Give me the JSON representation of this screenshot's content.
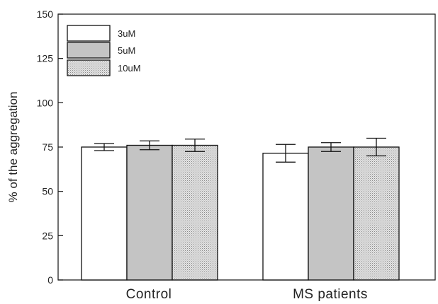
{
  "chart_data": {
    "type": "bar",
    "title": "",
    "xlabel": "",
    "ylabel": "% of the aggregation",
    "ylim": [
      0,
      150
    ],
    "yticks": [
      0,
      25,
      50,
      75,
      100,
      125,
      150
    ],
    "grid": false,
    "legend_position": "top-left",
    "categories": [
      "Control",
      "MS patients"
    ],
    "series": [
      {
        "name": "3uM",
        "values": [
          75,
          71.5
        ],
        "error": [
          2,
          5
        ],
        "fill": "white",
        "color": "#ffffff"
      },
      {
        "name": "5uM",
        "values": [
          76,
          75
        ],
        "error": [
          2.5,
          2.5
        ],
        "fill": "gray",
        "color": "#c4c4c4"
      },
      {
        "name": "10uM",
        "values": [
          76,
          75
        ],
        "error": [
          3.5,
          5
        ],
        "fill": "dotted",
        "color": "#d9d9d9"
      }
    ]
  }
}
